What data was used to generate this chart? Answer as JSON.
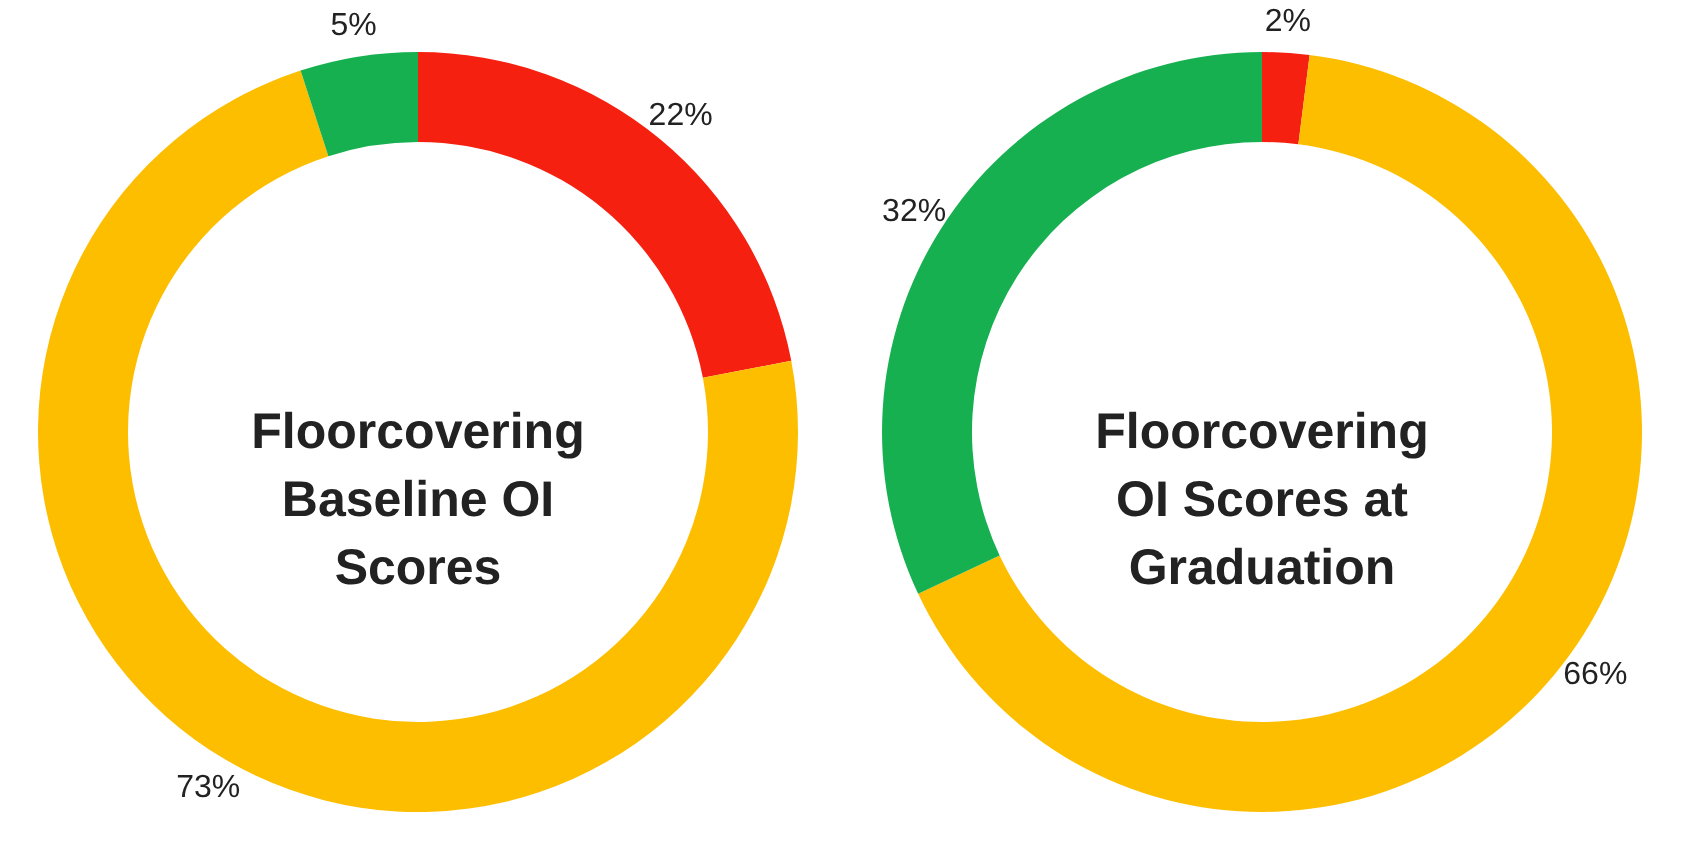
{
  "chart_data": [
    {
      "type": "donut",
      "title": "Floorcovering Baseline OI Scores",
      "categories": [
        null,
        null,
        null
      ],
      "values": [
        22,
        73,
        5
      ],
      "colors": [
        "#f5200f",
        "#fdbe00",
        "#17b050"
      ],
      "value_labels": [
        "22%",
        "73%",
        "5%"
      ],
      "legend": false
    },
    {
      "type": "donut",
      "title": "Floorcovering OI Scores at Graduation",
      "categories": [
        null,
        null,
        null
      ],
      "values": [
        2,
        66,
        32
      ],
      "colors": [
        "#f5200f",
        "#fdbe00",
        "#17b050"
      ],
      "value_labels": [
        "2%",
        "66%",
        "32%"
      ],
      "legend": false
    }
  ]
}
